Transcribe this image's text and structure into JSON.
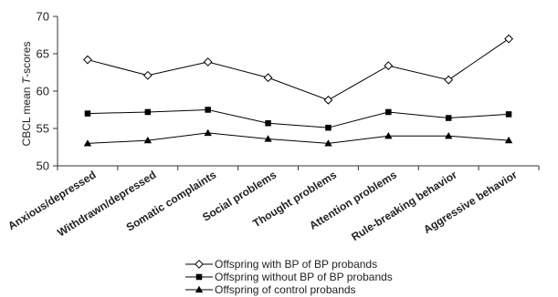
{
  "chart_data": {
    "type": "line",
    "ylabel_prefix": "CBCL mean ",
    "ylabel_italic": "T",
    "ylabel_suffix": "-scores",
    "ylim": [
      50,
      70
    ],
    "yticks": [
      50,
      55,
      60,
      65,
      70
    ],
    "grid": false,
    "legend_position": "bottom-center",
    "categories": [
      "Anxious/depressed",
      "Withdrawn/depressed",
      "Somatic complaints",
      "Social problems",
      "Thought problems",
      "Attention problems",
      "Rule-breaking behavior",
      "Aggressive behavior"
    ],
    "series": [
      {
        "name": "Offspring with BP of BP probands",
        "marker": "open-diamond",
        "color": "#000000",
        "values": [
          64.2,
          62.1,
          63.9,
          61.8,
          58.8,
          63.4,
          61.5,
          67.0
        ]
      },
      {
        "name": "Offspring without BP of BP probands",
        "marker": "filled-square",
        "color": "#000000",
        "values": [
          57.0,
          57.2,
          57.5,
          55.7,
          55.1,
          57.2,
          56.4,
          56.9
        ]
      },
      {
        "name": "Offspring of control probands",
        "marker": "filled-triangle",
        "color": "#000000",
        "values": [
          53.0,
          53.4,
          54.4,
          53.6,
          53.0,
          54.0,
          54.0,
          53.4
        ]
      }
    ]
  }
}
